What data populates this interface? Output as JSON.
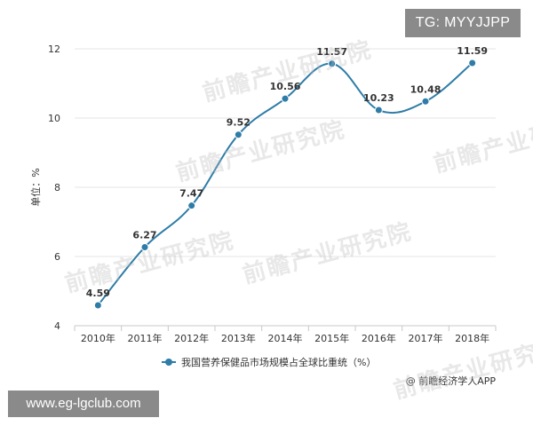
{
  "badges": {
    "tg": "TG: MYYJJPP",
    "url": "www.eg-lgclub.com"
  },
  "watermarks": [
    "前瞻产业研究院",
    "前瞻产业研究院",
    "前瞻产业研究院",
    "前瞻产业研究院",
    "前瞻产业研究院",
    "前瞻产业研究院"
  ],
  "source": "@ 前瞻经济学人APP",
  "colors": {
    "line": "#2e7ca8",
    "point": "#2e7ca8",
    "grid": "#e6e6e6",
    "axis": "#c8c8c8",
    "text": "#333333"
  },
  "chart_data": {
    "type": "line",
    "title": "",
    "xlabel": "",
    "ylabel": "单位：%",
    "categories": [
      "2010年",
      "2011年",
      "2012年",
      "2013年",
      "2014年",
      "2015年",
      "2016年",
      "2017年",
      "2018年"
    ],
    "series": [
      {
        "name": "我国营养保健品市场规模占全球比重统（%）",
        "values": [
          4.59,
          6.27,
          7.47,
          9.52,
          10.56,
          11.57,
          10.23,
          10.48,
          11.59
        ],
        "labels": [
          "4.59",
          "6.27",
          "7.47",
          "9.52",
          "10.56",
          "11.57",
          "10.23",
          "10.48",
          "11.59"
        ]
      }
    ],
    "ylim": [
      4,
      12
    ],
    "yticks": [
      4,
      6,
      8,
      10,
      12
    ],
    "grid": true,
    "smooth": true,
    "legend": "bottom-center"
  }
}
